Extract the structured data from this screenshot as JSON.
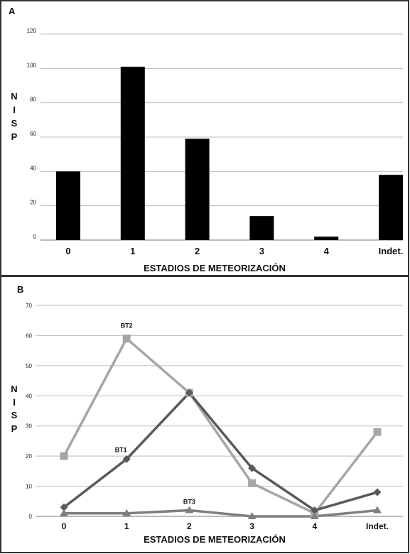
{
  "panels": [
    {
      "letter": "A",
      "ylabel": [
        "N",
        "I",
        "S",
        "P"
      ],
      "xlabel": "ESTADIOS DE METEORIZACIÓN"
    },
    {
      "letter": "B",
      "ylabel": [
        "N",
        "I",
        "S",
        "P"
      ],
      "xlabel": "ESTADIOS DE METEORIZACIÓN"
    }
  ],
  "chart_data": [
    {
      "type": "bar",
      "categories": [
        "0",
        "1",
        "2",
        "3",
        "4",
        "Indet."
      ],
      "values": [
        40,
        101,
        59,
        14,
        2,
        38
      ],
      "xlabel": "ESTADIOS DE METEORIZACIÓN",
      "ylabel": "NISP",
      "ylim": [
        0,
        120
      ],
      "yticks": [
        "0",
        "20",
        "40",
        "60",
        "80",
        "100",
        "120"
      ],
      "grid": true,
      "bar_color": "#000000"
    },
    {
      "type": "line",
      "categories": [
        "0",
        "1",
        "2",
        "3",
        "4",
        "Indet."
      ],
      "xlabel": "ESTADIOS DE METEORIZACIÓN",
      "ylabel": "NISP",
      "ylim": [
        0,
        70
      ],
      "yticks": [
        "0",
        "10",
        "20",
        "30",
        "40",
        "50",
        "60",
        "70"
      ],
      "grid": true,
      "series": [
        {
          "name": "BT1",
          "values": [
            3,
            19,
            41,
            16,
            2,
            8
          ],
          "color": "#595959",
          "marker": "diamond"
        },
        {
          "name": "BT2",
          "values": [
            20,
            59,
            41,
            11,
            1,
            28
          ],
          "color": "#a6a6a6",
          "marker": "square"
        },
        {
          "name": "BT3",
          "values": [
            1,
            1,
            2,
            0,
            0,
            2
          ],
          "color": "#7f7f7f",
          "marker": "triangle"
        }
      ]
    }
  ]
}
